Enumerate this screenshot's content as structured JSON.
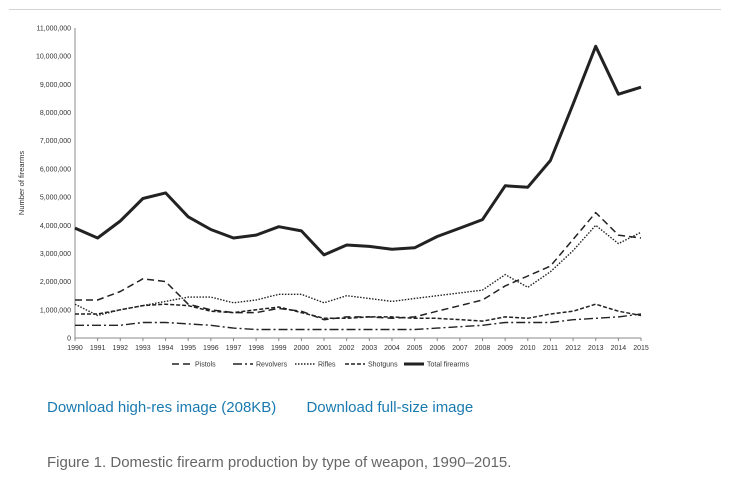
{
  "links": {
    "highres": "Download high-res image (208KB)",
    "fullsize": "Download full-size image"
  },
  "caption": "Figure 1. Domestic firearm production by type of weapon, 1990–2015.",
  "chart_data": {
    "type": "line",
    "title": "",
    "xlabel": "",
    "ylabel": "Number of firearms",
    "ylim": [
      0,
      11000000
    ],
    "yticks": [
      "0",
      "1,000,000",
      "2,000,000",
      "3,000,000",
      "4,000,000",
      "5,000,000",
      "6,000,000",
      "7,000,000",
      "8,000,000",
      "9,000,000",
      "10,000,000",
      "11,000,000"
    ],
    "grid": false,
    "legend": "bottom",
    "x": [
      "1990",
      "1991",
      "1992",
      "1993",
      "1994",
      "1995",
      "1996",
      "1997",
      "1998",
      "1999",
      "2000",
      "2001",
      "2002",
      "2003",
      "2004",
      "2005",
      "2006",
      "2007",
      "2008",
      "2009",
      "2010",
      "2011",
      "2012",
      "2013",
      "2014",
      "2015"
    ],
    "series": [
      {
        "name": "Pistols",
        "style": "dashed",
        "values": [
          1350000,
          1350000,
          1650000,
          2100000,
          2000000,
          1200000,
          1000000,
          900000,
          900000,
          1050000,
          950000,
          650000,
          750000,
          750000,
          700000,
          750000,
          950000,
          1150000,
          1350000,
          1850000,
          2200000,
          2550000,
          3500000,
          4450000,
          3650000,
          3550000
        ]
      },
      {
        "name": "Revolvers",
        "style": "dashdot",
        "values": [
          450000,
          450000,
          450000,
          550000,
          550000,
          500000,
          450000,
          350000,
          300000,
          300000,
          300000,
          300000,
          300000,
          300000,
          300000,
          300000,
          350000,
          400000,
          450000,
          550000,
          550000,
          550000,
          650000,
          700000,
          750000,
          850000
        ]
      },
      {
        "name": "Rifles",
        "style": "dotted",
        "values": [
          1200000,
          800000,
          1000000,
          1150000,
          1300000,
          1450000,
          1450000,
          1250000,
          1350000,
          1550000,
          1550000,
          1250000,
          1500000,
          1400000,
          1300000,
          1400000,
          1500000,
          1600000,
          1700000,
          2250000,
          1800000,
          2350000,
          3100000,
          4000000,
          3350000,
          3750000
        ]
      },
      {
        "name": "Shotguns",
        "style": "shortdash",
        "values": [
          850000,
          850000,
          1000000,
          1150000,
          1200000,
          1150000,
          950000,
          900000,
          1000000,
          1100000,
          900000,
          700000,
          700000,
          750000,
          750000,
          700000,
          700000,
          650000,
          600000,
          750000,
          700000,
          850000,
          950000,
          1200000,
          950000,
          800000
        ]
      },
      {
        "name": "Total firearms",
        "style": "solid",
        "values": [
          3900000,
          3550000,
          4150000,
          4950000,
          5150000,
          4300000,
          3850000,
          3550000,
          3650000,
          3950000,
          3800000,
          2950000,
          3300000,
          3250000,
          3150000,
          3200000,
          3600000,
          3900000,
          4200000,
          5400000,
          5350000,
          6300000,
          8300000,
          10350000,
          8650000,
          8900000
        ]
      }
    ]
  }
}
